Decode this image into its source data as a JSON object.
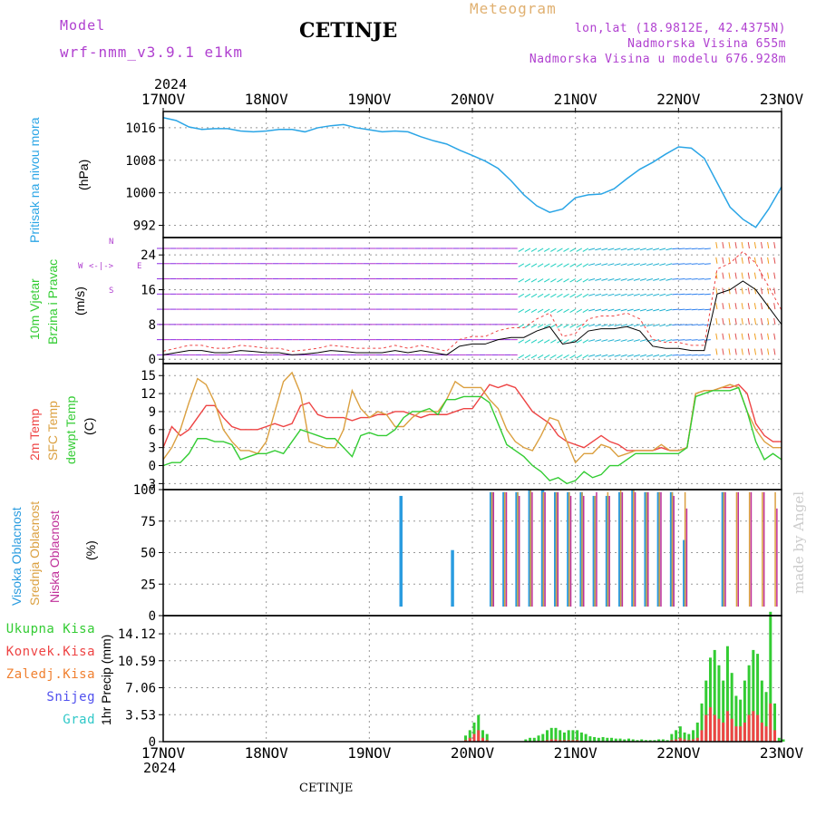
{
  "header": {
    "model_label": "Model",
    "model_value": "wrf-nmm_v3.9.1 e1km",
    "station": "CETINJE",
    "product": "Meteogram",
    "lonlat": "lon,lat (18.9812E, 42.4375N)",
    "elevation": "Nadmorska Visina 655m",
    "elevation_model": "Nadmorska Visina u modelu 676.928m",
    "credit": "made by Angel",
    "footer_station": "CETINJE"
  },
  "time_axis": {
    "year": "2024",
    "labels": [
      "17NOV",
      "18NOV",
      "19NOV",
      "20NOV",
      "21NOV",
      "22NOV",
      "23NOV"
    ]
  },
  "colors": {
    "pressure": "#2aa5e6",
    "wind_title": "#33cc33",
    "wind_dir": "#b040d0",
    "temp2m": "#ee4444",
    "sfc_temp": "#dba040",
    "dewpt": "#33cc33",
    "cloud_high": "#2a9ce0",
    "cloud_mid": "#dba040",
    "cloud_low": "#c0309a",
    "precip_total": "#33cc33",
    "precip_conv": "#ee4444",
    "precip_frz": "#f08030",
    "precip_snow": "#5050ee",
    "precip_grad": "#30c8c8",
    "model_text": "#b040d0",
    "meteogram_text": "#e0b070"
  },
  "panels": {
    "pressure": {
      "title": "Pritisak na nivou mora",
      "unit": "(hPa)",
      "ticks": [
        "992",
        "1000",
        "1008",
        "1016"
      ]
    },
    "wind": {
      "title1": "10m Vjetar",
      "title2": "Brzina i Pravac",
      "unit": "(m/s)",
      "ticks": [
        "0",
        "8",
        "16",
        "24"
      ],
      "compass": [
        "N",
        "E",
        "S",
        "W"
      ]
    },
    "temperature": {
      "title1": "2m Temp",
      "title2": "SFC Temp",
      "title3": "dewpt Temp",
      "unit": "(C)",
      "ticks": [
        "-3",
        "0",
        "3",
        "6",
        "9",
        "12",
        "15"
      ]
    },
    "cloud": {
      "title1": "Visoka Oblacnost",
      "title2": "Srednja Oblacnost",
      "title3": "Niska Oblacnost",
      "unit": "(%)",
      "ticks": [
        "0",
        "25",
        "50",
        "75",
        "100"
      ]
    },
    "precip": {
      "legend": [
        "Ukupna Kisa",
        "Konvek.Kisa",
        "Zaledj.Kisa",
        "Snijeg",
        "Grad"
      ],
      "ylabel": "1hr Precip (mm)",
      "ticks": [
        "0",
        "3.53",
        "7.06",
        "10.59",
        "14.12"
      ]
    }
  },
  "chart_data": [
    {
      "type": "line",
      "name": "pressure",
      "x_hours": [
        0,
        3,
        6,
        9,
        12,
        15,
        18,
        21,
        24,
        27,
        30,
        33,
        36,
        39,
        42,
        45,
        48,
        51,
        54,
        57,
        60,
        63,
        66,
        69,
        72,
        75,
        78,
        81,
        84,
        87,
        90,
        93,
        96,
        99,
        102,
        105,
        108,
        111,
        114,
        117,
        120,
        123,
        126,
        129,
        132,
        135,
        138,
        141,
        144
      ],
      "values": [
        1018.5,
        1017.8,
        1016.2,
        1015.6,
        1015.8,
        1015.8,
        1015.2,
        1015.0,
        1015.2,
        1015.6,
        1015.6,
        1015.0,
        1016.0,
        1016.5,
        1016.8,
        1016.0,
        1015.5,
        1015.0,
        1015.2,
        1015.0,
        1013.8,
        1012.8,
        1012.0,
        1010.5,
        1009.2,
        1007.8,
        1006.0,
        1003.0,
        999.5,
        996.8,
        995.2,
        996.0,
        998.8,
        999.5,
        999.7,
        1001.0,
        1003.5,
        1005.8,
        1007.5,
        1009.5,
        1011.3,
        1011.0,
        1008.5,
        1002.5,
        996.5,
        993.5,
        991.5,
        996.0,
        1001.5
      ],
      "ylim": [
        989,
        1020
      ]
    },
    {
      "type": "line",
      "name": "wind_speed",
      "x_hours": [
        0,
        3,
        6,
        9,
        12,
        15,
        18,
        21,
        24,
        27,
        30,
        33,
        36,
        39,
        42,
        45,
        48,
        51,
        54,
        57,
        60,
        63,
        66,
        69,
        72,
        75,
        78,
        81,
        84,
        87,
        90,
        93,
        96,
        99,
        102,
        105,
        108,
        111,
        114,
        117,
        120,
        123,
        126,
        129,
        132,
        135,
        138,
        141,
        144
      ],
      "values": [
        1.0,
        1.5,
        2.0,
        2.0,
        1.5,
        1.5,
        2.0,
        1.8,
        1.5,
        1.5,
        1.0,
        1.2,
        1.5,
        2.0,
        1.8,
        1.5,
        1.5,
        1.5,
        2.0,
        1.5,
        2.0,
        1.5,
        1.0,
        3.0,
        3.5,
        3.5,
        4.5,
        5.0,
        5.0,
        6.5,
        7.5,
        3.5,
        4.0,
        6.5,
        7.0,
        7.0,
        7.5,
        6.5,
        3.0,
        2.5,
        2.5,
        2.0,
        2.0,
        15.0,
        16.0,
        18.0,
        16.0,
        12.0,
        8.0
      ],
      "ylim": [
        -1,
        28
      ]
    },
    {
      "type": "line",
      "name": "temperature",
      "x_hours": [
        0,
        2,
        4,
        6,
        8,
        10,
        12,
        14,
        16,
        18,
        20,
        22,
        24,
        26,
        28,
        30,
        32,
        34,
        36,
        38,
        40,
        42,
        44,
        46,
        48,
        50,
        52,
        54,
        56,
        58,
        60,
        62,
        64,
        66,
        68,
        70,
        72,
        74,
        76,
        78,
        80,
        82,
        84,
        86,
        88,
        90,
        92,
        94,
        96,
        98,
        100,
        102,
        104,
        106,
        108,
        110,
        112,
        114,
        116,
        118,
        120,
        122,
        124,
        126,
        128,
        130,
        132,
        134,
        136,
        138,
        140,
        142,
        144
      ],
      "series": [
        {
          "name": "2m Temp",
          "values": [
            3.0,
            6.5,
            5.0,
            6.0,
            8.0,
            10.0,
            10.0,
            8.0,
            6.5,
            6.0,
            6.0,
            6.0,
            6.5,
            7.0,
            6.5,
            7.0,
            10.0,
            10.5,
            8.5,
            8.0,
            8.0,
            8.0,
            7.5,
            8.0,
            8.0,
            8.5,
            8.5,
            9.0,
            9.0,
            8.5,
            8.0,
            8.5,
            8.5,
            8.5,
            9.0,
            9.5,
            9.5,
            11.5,
            13.5,
            13.0,
            13.5,
            13.0,
            11.0,
            9.0,
            8.0,
            7.0,
            5.0,
            4.0,
            3.5,
            3.0,
            4.0,
            5.0,
            4.0,
            3.5,
            2.5,
            2.5,
            2.5,
            2.5,
            3.0,
            2.5,
            2.5,
            3.0,
            12.0,
            12.5,
            12.5,
            13.0,
            13.0,
            13.5,
            12.0,
            7.0,
            5.0,
            4.0,
            4.0
          ]
        },
        {
          "name": "SFC Temp",
          "values": [
            1.0,
            3.0,
            6.0,
            10.5,
            14.5,
            13.5,
            10.5,
            6.0,
            4.0,
            2.5,
            2.5,
            2.0,
            4.0,
            9.0,
            14.0,
            15.5,
            12.0,
            4.0,
            3.5,
            3.0,
            3.0,
            6.0,
            12.5,
            9.5,
            8.0,
            9.0,
            8.5,
            6.5,
            6.5,
            8.0,
            9.0,
            9.0,
            9.0,
            11.0,
            14.0,
            13.0,
            13.0,
            13.0,
            11.0,
            9.5,
            6.0,
            4.0,
            3.0,
            2.5,
            5.0,
            8.0,
            7.5,
            4.0,
            0.5,
            2.0,
            2.0,
            3.5,
            3.0,
            1.5,
            2.0,
            2.5,
            2.5,
            2.5,
            3.5,
            2.5,
            2.5,
            3.0,
            12.0,
            12.5,
            12.5,
            13.0,
            13.5,
            13.0,
            9.0,
            6.0,
            4.0,
            3.0,
            3.0
          ]
        },
        {
          "name": "dewpt Temp",
          "values": [
            0.0,
            0.5,
            0.5,
            2.0,
            4.5,
            4.5,
            4.0,
            4.0,
            3.5,
            1.0,
            1.5,
            2.0,
            2.0,
            2.5,
            2.0,
            4.0,
            6.0,
            5.5,
            5.0,
            4.5,
            4.5,
            3.0,
            1.5,
            5.0,
            5.5,
            5.0,
            5.0,
            6.0,
            8.0,
            9.0,
            9.0,
            9.5,
            8.5,
            11.0,
            11.0,
            11.5,
            11.5,
            11.5,
            10.5,
            7.0,
            3.5,
            2.5,
            1.5,
            0.0,
            -1.0,
            -2.5,
            -2.0,
            -3.0,
            -2.5,
            -1.0,
            -2.0,
            -1.5,
            0.0,
            0.0,
            1.0,
            2.0,
            2.0,
            2.0,
            2.0,
            2.0,
            2.0,
            3.0,
            11.5,
            12.0,
            12.5,
            12.5,
            12.5,
            13.0,
            9.0,
            4.0,
            1.0,
            2.0,
            1.0
          ]
        }
      ],
      "ylim": [
        -4,
        17
      ]
    },
    {
      "type": "bar",
      "name": "cloud_cover",
      "hours": [
        1,
        4,
        7,
        10,
        13,
        16,
        19,
        22,
        25,
        28,
        31,
        34,
        37,
        40,
        43,
        46,
        49,
        52,
        55,
        58,
        61,
        64,
        67,
        70,
        73,
        76,
        79,
        82,
        85,
        88,
        91,
        94,
        97,
        100,
        103,
        106,
        109,
        112,
        115,
        118,
        121,
        124,
        127,
        130,
        133,
        136,
        139,
        142
      ],
      "series": [
        {
          "name": "Visoka Oblacnost",
          "values": [
            0,
            0,
            0,
            0,
            0,
            0,
            0,
            0,
            0,
            0,
            0,
            0,
            0,
            0,
            0,
            0,
            0,
            0,
            95,
            0,
            0,
            0,
            52,
            0,
            0,
            98,
            98,
            98,
            100,
            100,
            98,
            98,
            98,
            95,
            95,
            98,
            100,
            98,
            98,
            98,
            60,
            0,
            0,
            98,
            0,
            0,
            0,
            0
          ]
        },
        {
          "name": "Srednja Oblacnost",
          "values": [
            0,
            0,
            0,
            0,
            0,
            0,
            0,
            0,
            0,
            0,
            0,
            0,
            0,
            0,
            0,
            0,
            0,
            0,
            0,
            0,
            0,
            0,
            0,
            0,
            0,
            98,
            98,
            98,
            100,
            98,
            98,
            98,
            98,
            95,
            98,
            100,
            100,
            98,
            98,
            98,
            98,
            0,
            0,
            98,
            98,
            98,
            98,
            98
          ]
        },
        {
          "name": "Niska Oblacnost",
          "values": [
            0,
            0,
            0,
            0,
            0,
            0,
            0,
            0,
            0,
            0,
            0,
            0,
            0,
            0,
            0,
            0,
            0,
            0,
            0,
            0,
            0,
            0,
            0,
            0,
            0,
            98,
            98,
            95,
            98,
            98,
            98,
            95,
            95,
            98,
            95,
            98,
            98,
            98,
            98,
            95,
            85,
            0,
            0,
            98,
            98,
            98,
            98,
            85
          ]
        }
      ],
      "ylim": [
        0,
        100
      ]
    },
    {
      "type": "bar",
      "name": "precipitation",
      "hours": [
        70,
        71,
        72,
        73,
        74,
        75,
        84,
        85,
        86,
        87,
        88,
        89,
        90,
        91,
        92,
        93,
        94,
        95,
        96,
        97,
        98,
        99,
        100,
        101,
        102,
        103,
        104,
        105,
        106,
        107,
        108,
        109,
        110,
        111,
        112,
        113,
        114,
        115,
        116,
        117,
        118,
        119,
        120,
        121,
        122,
        123,
        124,
        125,
        126,
        127,
        128,
        129,
        130,
        131,
        132,
        133,
        134,
        135,
        136,
        137,
        138,
        139,
        140,
        141,
        142,
        143,
        144
      ],
      "series": [
        {
          "name": "Ukupna Kisa",
          "values": [
            0.8,
            1.5,
            2.5,
            3.5,
            1.5,
            1.0,
            0.3,
            0.5,
            0.5,
            0.8,
            1.0,
            1.5,
            1.8,
            1.8,
            1.5,
            1.2,
            1.5,
            1.5,
            1.5,
            1.2,
            1.0,
            0.7,
            0.6,
            0.5,
            0.6,
            0.5,
            0.5,
            0.4,
            0.4,
            0.3,
            0.4,
            0.3,
            0.2,
            0.3,
            0.2,
            0.2,
            0.2,
            0.3,
            0.3,
            0.2,
            1.0,
            1.5,
            2.0,
            1.2,
            1.0,
            1.5,
            2.5,
            5.0,
            8.0,
            11.0,
            12.0,
            10.0,
            8.0,
            12.5,
            9.0,
            6.0,
            5.5,
            8.0,
            10.0,
            12.0,
            11.5,
            8.0,
            6.5,
            17.0,
            5.0,
            0.5,
            0.3
          ]
        },
        {
          "name": "Konvek.Kisa",
          "values": [
            0.2,
            0.5,
            1.0,
            1.5,
            0.5,
            0.2,
            0,
            0,
            0,
            0.1,
            0.1,
            0.2,
            0.3,
            0.3,
            0.2,
            0.2,
            0.2,
            0.2,
            0.2,
            0.1,
            0.1,
            0,
            0,
            0,
            0,
            0,
            0,
            0,
            0,
            0,
            0,
            0,
            0,
            0,
            0,
            0,
            0,
            0,
            0,
            0,
            0.2,
            0.3,
            0.5,
            0.3,
            0.2,
            0.3,
            0.5,
            1.5,
            3.5,
            4.5,
            3.5,
            3.0,
            2.5,
            4.0,
            3.0,
            2.0,
            2.0,
            2.5,
            3.5,
            4.0,
            3.5,
            2.5,
            2.0,
            5.0,
            1.5,
            0,
            0
          ]
        }
      ],
      "ylim": [
        0,
        16.5
      ]
    }
  ]
}
